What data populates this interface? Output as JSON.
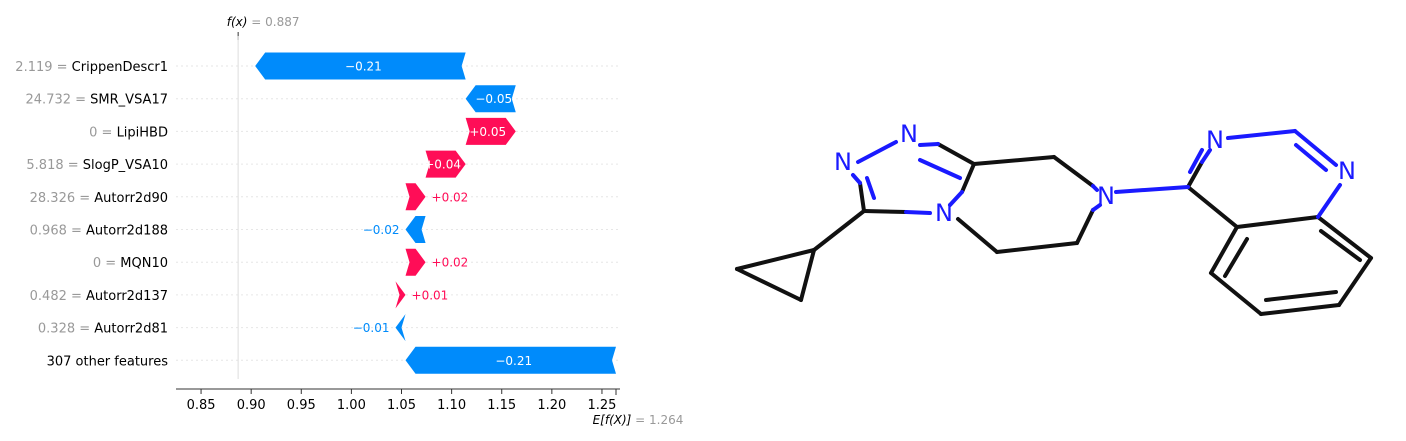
{
  "chart_data": {
    "type": "waterfall",
    "title": "",
    "xlabel": "",
    "ylabel": "",
    "xlim": [
      0.825,
      1.268
    ],
    "xticks": [
      "0.85",
      "0.90",
      "0.95",
      "1.00",
      "1.05",
      "1.10",
      "1.15",
      "1.20",
      "1.25"
    ],
    "xtick_values": [
      0.85,
      0.9,
      0.95,
      1.0,
      1.05,
      1.1,
      1.15,
      1.2,
      1.25
    ],
    "fx": {
      "label": "f(x)",
      "eq": " = ",
      "value": "0.887",
      "x": 0.887
    },
    "base": {
      "label": "E[f(X)]",
      "eq": " = ",
      "value": "1.264",
      "x": 1.264
    },
    "colors": {
      "positive": "#ff0d57",
      "negative": "#008bfb"
    },
    "rows": [
      {
        "value": "2.119",
        "eq": " = ",
        "feature": "CrippenDescr1",
        "contribution": -0.21,
        "label": "−0.21"
      },
      {
        "value": "24.732",
        "eq": " = ",
        "feature": "SMR_VSA17",
        "contribution": -0.05,
        "label": "−0.05"
      },
      {
        "value": "0",
        "eq": " = ",
        "feature": "LipiHBD",
        "contribution": 0.05,
        "label": "+0.05"
      },
      {
        "value": "5.818",
        "eq": " = ",
        "feature": "SlogP_VSA10",
        "contribution": 0.04,
        "label": "+0.04"
      },
      {
        "value": "28.326",
        "eq": " = ",
        "feature": "Autorr2d90",
        "contribution": 0.02,
        "label": "+0.02"
      },
      {
        "value": "0.968",
        "eq": " = ",
        "feature": "Autorr2d188",
        "contribution": -0.02,
        "label": "−0.02"
      },
      {
        "value": "0",
        "eq": " = ",
        "feature": "MQN10",
        "contribution": 0.02,
        "label": "+0.02"
      },
      {
        "value": "0.482",
        "eq": " = ",
        "feature": "Autorr2d137",
        "contribution": 0.01,
        "label": "+0.01"
      },
      {
        "value": "0.328",
        "eq": " = ",
        "feature": "Autorr2d81",
        "contribution": -0.01,
        "label": "−0.01"
      },
      {
        "value": "",
        "eq": "",
        "feature": "307 other features",
        "contribution": -0.21,
        "label": "−0.21"
      }
    ]
  },
  "molecule": {
    "atom_label": "N"
  }
}
